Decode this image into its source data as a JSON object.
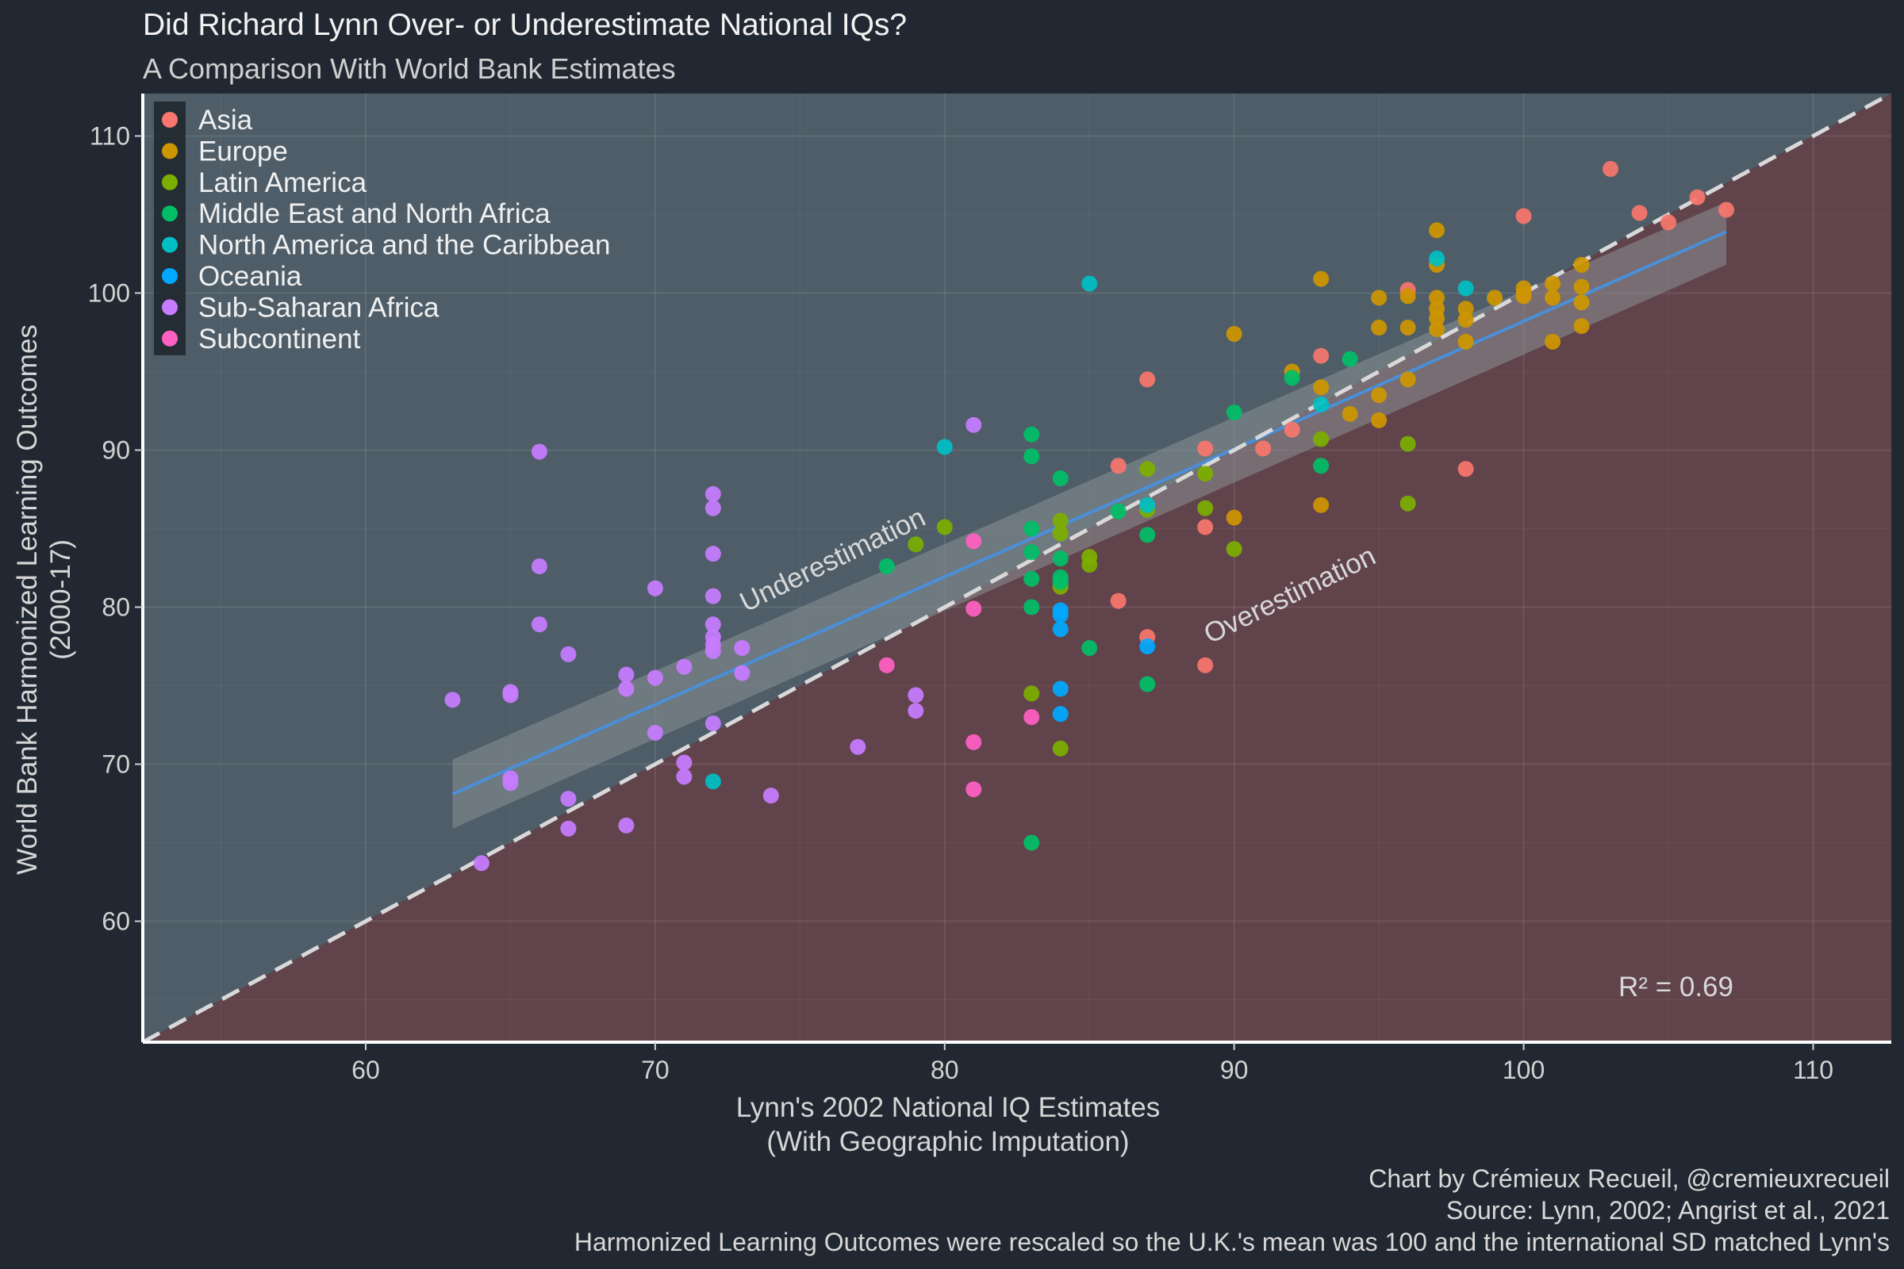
{
  "header": {
    "title": "Did Richard Lynn Over- or Underestimate National IQs?",
    "subtitle": "A Comparison With World Bank Estimates"
  },
  "footer": {
    "credit": "Chart by Crémieux Recueil, @cremieuxrecueil",
    "source": "Source: Lynn, 2002; Angrist et al., 2021",
    "note": "Harmonized Learning Outcomes were rescaled so the U.K.'s mean was 100 and the international SD matched Lynn's"
  },
  "colors": {
    "background": "#222831",
    "panel_upper": "#4e5d68",
    "panel_lower": "#61434b",
    "ribbon": "#8a8f94",
    "fit_line": "#4a8fd8",
    "identity_line": "#d9d9d9"
  },
  "chart_data": {
    "type": "scatter",
    "title": "Did Richard Lynn Over- or Underestimate National IQs?",
    "subtitle": "A Comparison With World Bank Estimates",
    "xlabel": [
      "Lynn's 2002 National IQ Estimates",
      "(With Geographic Imputation)"
    ],
    "ylabel": [
      "World Bank Harmonized Learning Outcomes",
      "(2000-17)"
    ],
    "xlim": [
      52.3,
      112.7
    ],
    "ylim": [
      52.3,
      112.7
    ],
    "xticks": [
      60,
      70,
      80,
      90,
      100,
      110
    ],
    "yticks": [
      60,
      70,
      80,
      90,
      100,
      110
    ],
    "grid": true,
    "legend_position": "top-left",
    "annotations": {
      "under": "Underestimation",
      "over": "Overestimation",
      "r2": "R² = 0.69"
    },
    "fit": {
      "x": [
        63,
        107
      ],
      "y": [
        68.1,
        103.9
      ],
      "ci_lower": [
        65.9,
        101.8
      ],
      "ci_upper": [
        70.3,
        105.8
      ]
    },
    "identity": [
      [
        52.3,
        52.3
      ],
      [
        112.7,
        112.7
      ]
    ],
    "series": [
      {
        "name": "Asia",
        "color": "#F8766D",
        "points": [
          [
            103,
            107.9
          ],
          [
            104,
            105.1
          ],
          [
            105,
            104.5
          ],
          [
            106,
            106.1
          ],
          [
            107,
            105.3
          ],
          [
            100,
            104.9
          ],
          [
            96,
            100.2
          ],
          [
            93,
            96
          ],
          [
            87,
            94.5
          ],
          [
            86,
            89
          ],
          [
            89,
            90.1
          ],
          [
            91,
            90.1
          ],
          [
            92,
            91.3
          ],
          [
            86,
            80.4
          ],
          [
            87,
            78.1
          ],
          [
            89,
            85.1
          ],
          [
            89,
            76.3
          ],
          [
            98,
            88.8
          ],
          [
            100,
            99.9
          ]
        ]
      },
      {
        "name": "Europe",
        "color": "#CD9600",
        "points": [
          [
            97,
            104
          ],
          [
            97,
            101.8
          ],
          [
            98,
            99
          ],
          [
            98,
            98.3
          ],
          [
            99,
            99.7
          ],
          [
            100,
            100.3
          ],
          [
            100,
            99.8
          ],
          [
            101,
            100.6
          ],
          [
            101,
            99.7
          ],
          [
            101,
            96.9
          ],
          [
            102,
            101.8
          ],
          [
            102,
            100.4
          ],
          [
            102,
            99.4
          ],
          [
            102,
            97.9
          ],
          [
            97,
            99.7
          ],
          [
            97,
            99
          ],
          [
            97,
            98.4
          ],
          [
            96,
            97.8
          ],
          [
            95,
            97.8
          ],
          [
            97,
            97.7
          ],
          [
            96,
            99.8
          ],
          [
            95,
            99.7
          ],
          [
            93,
            100.9
          ],
          [
            90,
            97.4
          ],
          [
            92,
            95
          ],
          [
            93,
            94
          ],
          [
            95,
            93.5
          ],
          [
            94,
            92.3
          ],
          [
            95,
            91.9
          ],
          [
            96,
            94.5
          ],
          [
            93,
            86.5
          ],
          [
            90,
            85.7
          ],
          [
            98,
            96.9
          ]
        ]
      },
      {
        "name": "Latin America",
        "color": "#7CAE00",
        "points": [
          [
            87,
            88.8
          ],
          [
            89,
            88.5
          ],
          [
            89,
            86.3
          ],
          [
            87,
            86.2
          ],
          [
            84,
            85.5
          ],
          [
            84,
            84.7
          ],
          [
            85,
            83.2
          ],
          [
            85,
            82.7
          ],
          [
            84,
            81.3
          ],
          [
            80,
            85.1
          ],
          [
            79,
            84
          ],
          [
            90,
            83.7
          ],
          [
            93,
            90.7
          ],
          [
            96,
            90.4
          ],
          [
            96,
            86.6
          ],
          [
            83,
            74.5
          ],
          [
            84,
            71
          ]
        ]
      },
      {
        "name": "Middle East and North Africa",
        "color": "#00BE67",
        "points": [
          [
            83,
            91
          ],
          [
            83,
            89.6
          ],
          [
            84,
            88.2
          ],
          [
            83,
            85
          ],
          [
            83,
            83.5
          ],
          [
            84,
            83.1
          ],
          [
            84,
            81.9
          ],
          [
            83,
            81.8
          ],
          [
            84,
            81.6
          ],
          [
            83,
            80
          ],
          [
            78,
            82.6
          ],
          [
            86,
            86.1
          ],
          [
            87,
            84.6
          ],
          [
            92,
            94.6
          ],
          [
            90,
            92.4
          ],
          [
            93,
            89
          ],
          [
            94,
            95.8
          ],
          [
            85,
            77.4
          ],
          [
            87,
            75.1
          ],
          [
            83,
            65
          ]
        ]
      },
      {
        "name": "North America and the Caribbean",
        "color": "#00BFC4",
        "points": [
          [
            85,
            100.6
          ],
          [
            80,
            90.2
          ],
          [
            97,
            102.2
          ],
          [
            98,
            100.3
          ],
          [
            93,
            92.9
          ],
          [
            87,
            86.5
          ],
          [
            72,
            68.9
          ]
        ]
      },
      {
        "name": "Oceania",
        "color": "#00A9FF",
        "points": [
          [
            84,
            79.8
          ],
          [
            84,
            79.5
          ],
          [
            84,
            78.6
          ],
          [
            87,
            77.5
          ],
          [
            84,
            74.8
          ],
          [
            84,
            73.2
          ]
        ]
      },
      {
        "name": "Sub-Saharan Africa",
        "color": "#C77CFF",
        "points": [
          [
            81,
            91.6
          ],
          [
            66,
            89.9
          ],
          [
            72,
            87.2
          ],
          [
            72,
            86.3
          ],
          [
            72,
            83.4
          ],
          [
            66,
            82.6
          ],
          [
            70,
            81.2
          ],
          [
            72,
            80.7
          ],
          [
            66,
            78.9
          ],
          [
            72,
            78.9
          ],
          [
            72,
            78.1
          ],
          [
            72,
            77.6
          ],
          [
            72,
            77.2
          ],
          [
            73,
            77.4
          ],
          [
            67,
            77
          ],
          [
            71,
            76.2
          ],
          [
            73,
            75.8
          ],
          [
            69,
            75.7
          ],
          [
            70,
            75.5
          ],
          [
            69,
            74.8
          ],
          [
            65,
            74.6
          ],
          [
            65,
            74.4
          ],
          [
            63,
            74.1
          ],
          [
            79,
            74.4
          ],
          [
            79,
            73.4
          ],
          [
            72,
            72.6
          ],
          [
            70,
            72
          ],
          [
            77,
            71.1
          ],
          [
            71,
            70.1
          ],
          [
            71,
            69.2
          ],
          [
            65,
            69.1
          ],
          [
            65,
            68.8
          ],
          [
            74,
            68
          ],
          [
            67,
            67.8
          ],
          [
            69,
            66.1
          ],
          [
            67,
            65.9
          ],
          [
            64,
            63.7
          ]
        ]
      },
      {
        "name": "Subcontinent",
        "color": "#FF61C3",
        "points": [
          [
            81,
            84.2
          ],
          [
            81,
            79.9
          ],
          [
            78,
            76.3
          ],
          [
            81,
            71.4
          ],
          [
            83,
            73
          ],
          [
            81,
            68.4
          ]
        ]
      }
    ]
  }
}
